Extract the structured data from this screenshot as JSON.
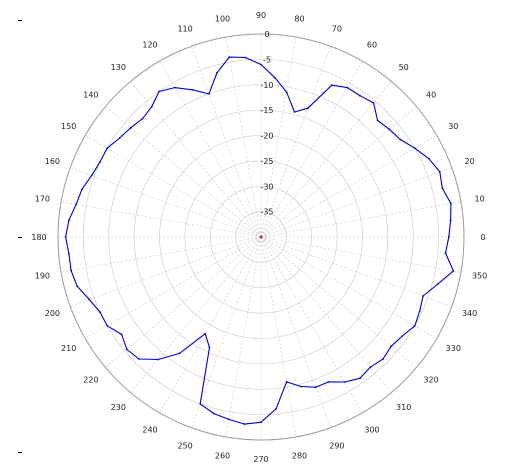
{
  "chart_data": {
    "type": "polar-line",
    "title": "",
    "angle_unit": "degrees",
    "zero_direction": "east",
    "rotation": "counterclockwise",
    "angle_ticks": [
      0,
      10,
      20,
      30,
      40,
      50,
      60,
      70,
      80,
      90,
      100,
      110,
      120,
      130,
      140,
      150,
      160,
      170,
      180,
      190,
      200,
      210,
      220,
      230,
      240,
      250,
      260,
      270,
      280,
      290,
      300,
      310,
      320,
      330,
      340,
      350
    ],
    "radial_ticks": [
      0,
      -5,
      -10,
      -15,
      -20,
      -25,
      -30,
      -35
    ],
    "radial_range": [
      -40,
      0
    ],
    "grid": true,
    "series": [
      {
        "color": "#0000cc",
        "theta": [
          0,
          5,
          10,
          15,
          20,
          25,
          30,
          35,
          40,
          45,
          50,
          55,
          60,
          65,
          70,
          75,
          80,
          85,
          90,
          95,
          100,
          105,
          110,
          115,
          120,
          125,
          130,
          135,
          140,
          145,
          150,
          155,
          160,
          165,
          170,
          175,
          180,
          185,
          190,
          195,
          200,
          205,
          210,
          215,
          220,
          225,
          230,
          235,
          240,
          245,
          250,
          255,
          260,
          265,
          270,
          275,
          280,
          285,
          290,
          295,
          300,
          305,
          310,
          315,
          320,
          325,
          330,
          335,
          340,
          345,
          350,
          355,
          360
        ],
        "r": [
          -3.0,
          -2.5,
          -2.0,
          -3.0,
          -2.5,
          -3.5,
          -5.0,
          -6.5,
          -7.0,
          -7.5,
          -5.5,
          -6.0,
          -6.0,
          -7.0,
          -13.0,
          -14.5,
          -11.0,
          -8.5,
          -6.0,
          -4.5,
          -4.0,
          -6.5,
          -10.0,
          -8.0,
          -6.0,
          -5.0,
          -6.5,
          -7.0,
          -6.5,
          -6.0,
          -5.0,
          -5.0,
          -4.5,
          -3.5,
          -3.0,
          -2.0,
          -1.5,
          -2.0,
          -2.0,
          -2.5,
          -4.0,
          -5.0,
          -5.0,
          -6.5,
          -5.5,
          -6.0,
          -8.5,
          -12.0,
          -18.0,
          -16.0,
          -5.0,
          -4.0,
          -3.5,
          -3.0,
          -3.5,
          -6.0,
          -11.0,
          -9.5,
          -8.5,
          -8.5,
          -7.0,
          -6.0,
          -6.5,
          -6.0,
          -6.5,
          -6.0,
          -5.0,
          -5.5,
          -6.0,
          -4.0,
          -1.5,
          -3.5,
          -3.0
        ]
      }
    ]
  }
}
